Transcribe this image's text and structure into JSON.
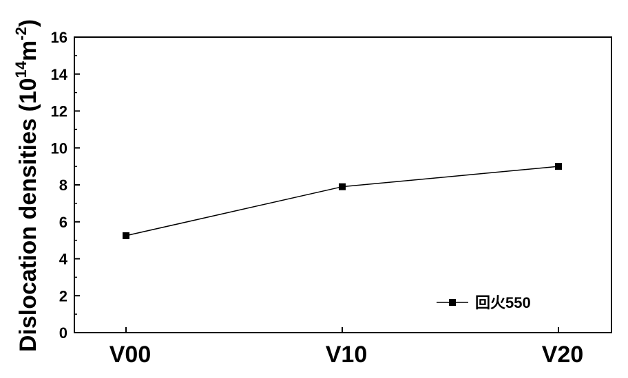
{
  "chart_data": {
    "type": "line",
    "categories": [
      "V00",
      "V10",
      "V20"
    ],
    "series": [
      {
        "name": "回火550",
        "values": [
          5.25,
          7.9,
          9.0
        ]
      }
    ],
    "ylabel_main": "Dislocation densities (10",
    "ylabel_exp1": "14",
    "ylabel_mid": "m",
    "ylabel_exp2": "-2",
    "ylabel_end": ")",
    "ylim": [
      0,
      16
    ],
    "yticks": [
      "0",
      "2",
      "4",
      "6",
      "8",
      "10",
      "12",
      "14",
      "16"
    ],
    "grid": false,
    "legend_position": "bottom-right",
    "colors": {
      "series": "#000000",
      "axis": "#000000"
    }
  }
}
